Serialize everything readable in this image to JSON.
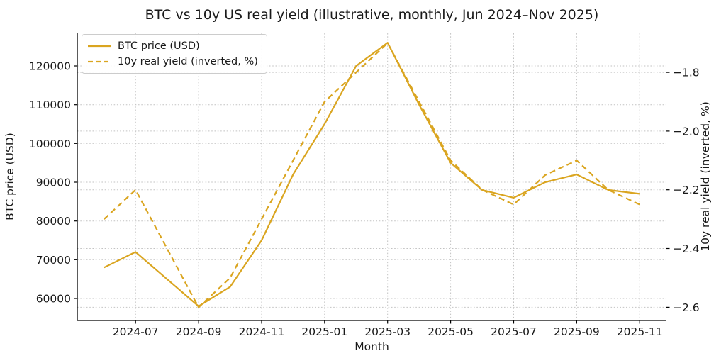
{
  "chart": {
    "title": "BTC vs 10y US real yield (illustrative, monthly, Jun 2024–Nov 2025)",
    "xlabel": "Month",
    "ylabel_left": "BTC price (USD)",
    "ylabel_right": "10y real yield (inverted, %)",
    "legend": [
      {
        "label": "BTC price (USD)",
        "style": "solid"
      },
      {
        "label": "10y real yield (inverted, %)",
        "style": "dashed"
      }
    ],
    "colors": {
      "line": "#DAA520",
      "grid": "#c2c2c2",
      "spine": "#000000",
      "text": "#1a1a1a",
      "legend_border": "#cccccc"
    }
  },
  "chart_data": {
    "type": "line",
    "title": "BTC vs 10y US real yield (illustrative, monthly, Jun 2024–Nov 2025)",
    "xlabel": "Month",
    "grid": true,
    "legend_position": "upper left",
    "x": [
      "2024-06",
      "2024-07",
      "2024-08",
      "2024-09",
      "2024-10",
      "2024-11",
      "2024-12",
      "2025-01",
      "2025-02",
      "2025-03",
      "2025-04",
      "2025-05",
      "2025-06",
      "2025-07",
      "2025-08",
      "2025-09",
      "2025-10",
      "2025-11"
    ],
    "x_tick_labels": [
      "2024-07",
      "2024-09",
      "2024-11",
      "2025-01",
      "2025-03",
      "2025-05",
      "2025-07",
      "2025-09",
      "2025-11"
    ],
    "x_tick_indices": [
      1,
      3,
      5,
      7,
      9,
      11,
      13,
      15,
      17
    ],
    "x_index_lim": [
      -0.85,
      17.85
    ],
    "series": [
      {
        "name": "BTC price (USD)",
        "axis": "left",
        "style": "solid",
        "values": [
          68000,
          72000,
          65000,
          58000,
          63000,
          75000,
          92000,
          105000,
          120000,
          126000,
          110000,
          95000,
          88000,
          86000,
          90000,
          92000,
          88000,
          87000
        ]
      },
      {
        "name": "10y real yield (inverted, %)",
        "axis": "right",
        "style": "dashed",
        "values": [
          -2.3,
          -2.2,
          -2.4,
          -2.6,
          -2.5,
          -2.3,
          -2.1,
          -1.9,
          -1.8,
          -1.7,
          -1.9,
          -2.1,
          -2.2,
          -2.25,
          -2.15,
          -2.1,
          -2.2,
          -2.25
        ]
      }
    ],
    "y_left": {
      "label": "BTC price (USD)",
      "ticks": [
        60000,
        70000,
        80000,
        90000,
        100000,
        110000,
        120000
      ],
      "lim": [
        54330,
        128414
      ]
    },
    "y_right": {
      "label": "10y real yield (inverted, %)",
      "ticks": [
        -1.8,
        -2.0,
        -2.2,
        -2.4,
        -2.6
      ],
      "lim": [
        -2.645,
        -1.667
      ]
    }
  }
}
